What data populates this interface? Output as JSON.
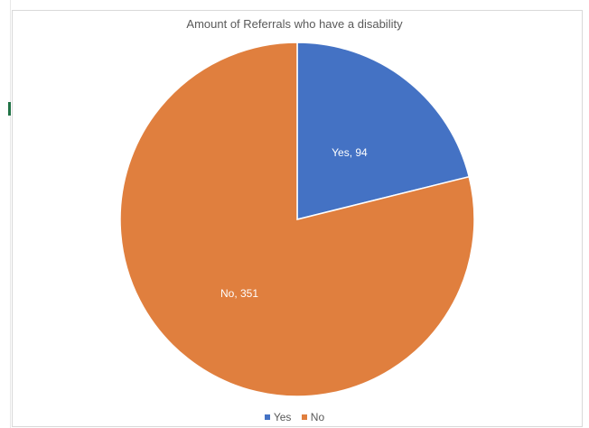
{
  "chart_data": {
    "type": "pie",
    "title": "Amount of Referrals who have a disability",
    "categories": [
      "Yes",
      "No"
    ],
    "values": [
      94,
      351
    ],
    "colors": [
      "#4472c4",
      "#e07f3e"
    ],
    "data_labels": [
      "Yes, 94",
      "No, 351"
    ],
    "legend": {
      "placement": "bottom",
      "items": [
        {
          "label": "Yes",
          "color": "#4472c4"
        },
        {
          "label": "No",
          "color": "#e07f3e"
        }
      ]
    }
  }
}
